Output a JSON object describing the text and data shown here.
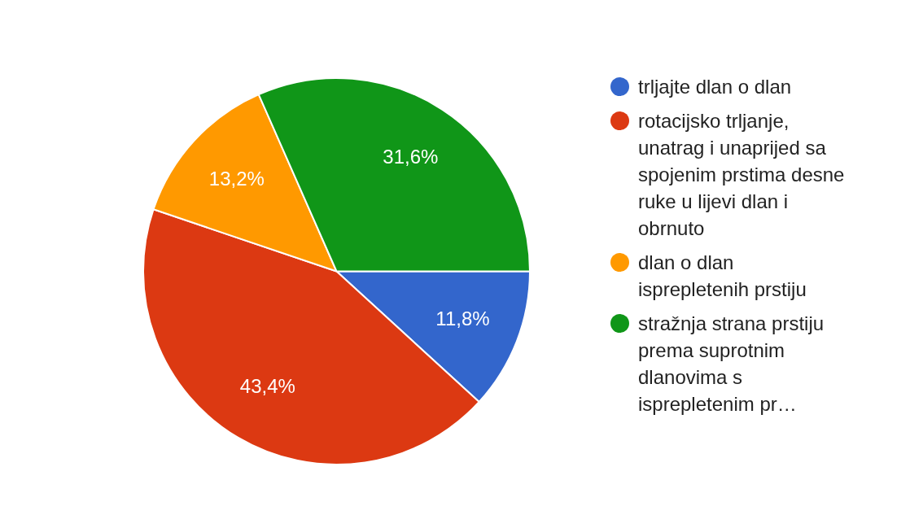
{
  "chart_data": {
    "type": "pie",
    "categories": [
      "trljajte dlan o dlan",
      "rotacijsko trljanje, unatrag i unaprijed sa spojenim prstima desne ruke u lijevi dlan i obrnuto",
      "dlan o dlan isprepletenih prstiju",
      "stražnja strana prstiju prema suprotnim dlanovima s isprepletenim pr…"
    ],
    "values": [
      11.8,
      43.4,
      13.2,
      31.6
    ],
    "value_labels": [
      "11,8%",
      "43,4%",
      "13,2%",
      "31,6%"
    ],
    "colors": [
      "#3366cc",
      "#dc3912",
      "#ff9900",
      "#109618"
    ],
    "legend": "right"
  }
}
